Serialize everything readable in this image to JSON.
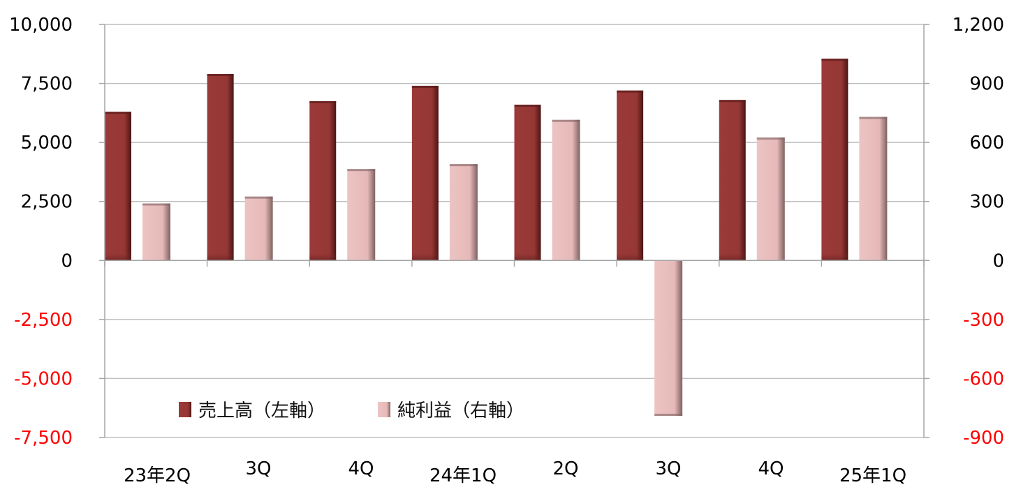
{
  "chart_data": {
    "type": "bar",
    "categories": [
      "23年2Q",
      "3Q",
      "4Q",
      "24年1Q",
      "2Q",
      "3Q",
      "4Q",
      "25年1Q"
    ],
    "series": [
      {
        "name": "売上高（左軸）",
        "axis": "left",
        "values": [
          6300,
          7900,
          6750,
          7400,
          6600,
          7200,
          6800,
          8550
        ]
      },
      {
        "name": "純利益（右軸）",
        "axis": "right",
        "values": [
          290,
          325,
          465,
          490,
          715,
          -790,
          625,
          730
        ]
      }
    ],
    "y_left": {
      "ylim": [
        -7500,
        10000
      ],
      "ticks": [
        "10,000",
        "7,500",
        "5,000",
        "2,500",
        "0",
        "-2,500",
        "-5,000",
        "-7,500"
      ],
      "tick_values": [
        10000,
        7500,
        5000,
        2500,
        0,
        -2500,
        -5000,
        -7500
      ]
    },
    "y_right": {
      "ylim": [
        -900,
        1200
      ],
      "ticks": [
        "1,200",
        "900",
        "600",
        "300",
        "0",
        "-300",
        "-600",
        "-900"
      ],
      "tick_values": [
        1200,
        900,
        600,
        300,
        0,
        -300,
        -600,
        -900
      ]
    },
    "grid": true,
    "legend_position": "bottom-left",
    "colors": {
      "sales": "#953735",
      "sales_dark": "#5a1c1b",
      "profit": "#e6b9b8",
      "profit_dark": "#8a6d6d",
      "negative_tick": "#ff0000",
      "positive_tick": "#000000",
      "grid": "#bfbfbf"
    }
  }
}
